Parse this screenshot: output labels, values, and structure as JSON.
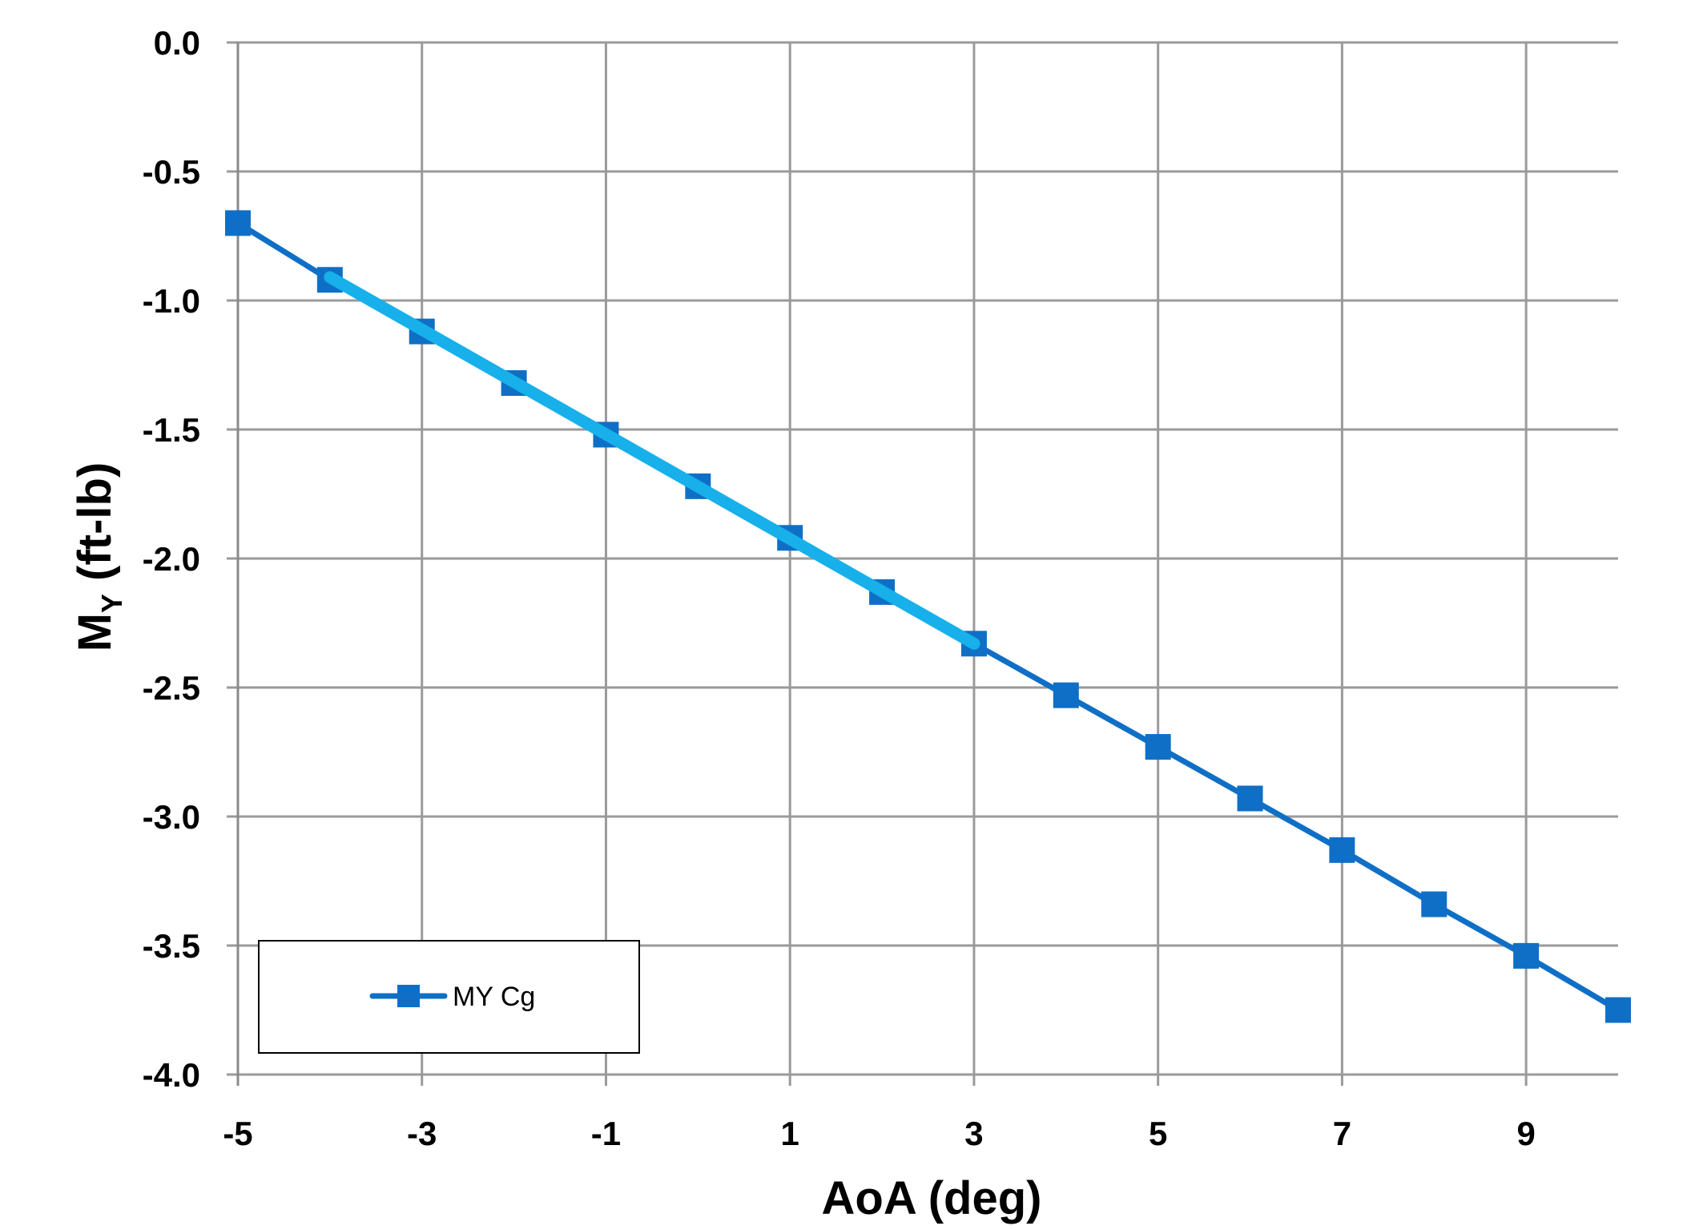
{
  "chart_data": {
    "type": "line",
    "title": "",
    "xlabel": "AoA (deg)",
    "ylabel_main": "M",
    "ylabel_sub": "Y",
    "ylabel_units": " (ft-lb)",
    "xlim": [
      -5,
      10
    ],
    "ylim": [
      -4.0,
      0.0
    ],
    "x_ticks": [
      -5,
      -3,
      -1,
      1,
      3,
      5,
      7,
      9
    ],
    "x_tick_labels": [
      "-5",
      "-3",
      "-1",
      "1",
      "3",
      "5",
      "7",
      "9"
    ],
    "y_ticks": [
      0.0,
      -0.5,
      -1.0,
      -1.5,
      -2.0,
      -2.5,
      -3.0,
      -3.5,
      -4.0
    ],
    "y_tick_labels": [
      "0.0",
      "-0.5",
      "-1.0",
      "-1.5",
      "-2.0",
      "-2.5",
      "-3.0",
      "-3.5",
      "-4.0"
    ],
    "grid": true,
    "legend_position": "bottom-left",
    "series": [
      {
        "name": "MY Cg",
        "color": "#0f6fc6",
        "marker": "square",
        "x": [
          -5,
          -4,
          -3,
          -2,
          -1,
          0,
          1,
          2,
          3,
          4,
          5,
          6,
          7,
          8,
          9,
          10
        ],
        "y": [
          -0.7,
          -0.92,
          -1.12,
          -1.32,
          -1.52,
          -1.72,
          -1.92,
          -2.13,
          -2.33,
          -2.53,
          -2.73,
          -2.93,
          -3.13,
          -3.34,
          -3.54,
          -3.75
        ]
      }
    ],
    "trendline": {
      "color": "#17b0ea",
      "x": [
        -4,
        3
      ],
      "y": [
        -0.91,
        -2.33
      ]
    }
  }
}
